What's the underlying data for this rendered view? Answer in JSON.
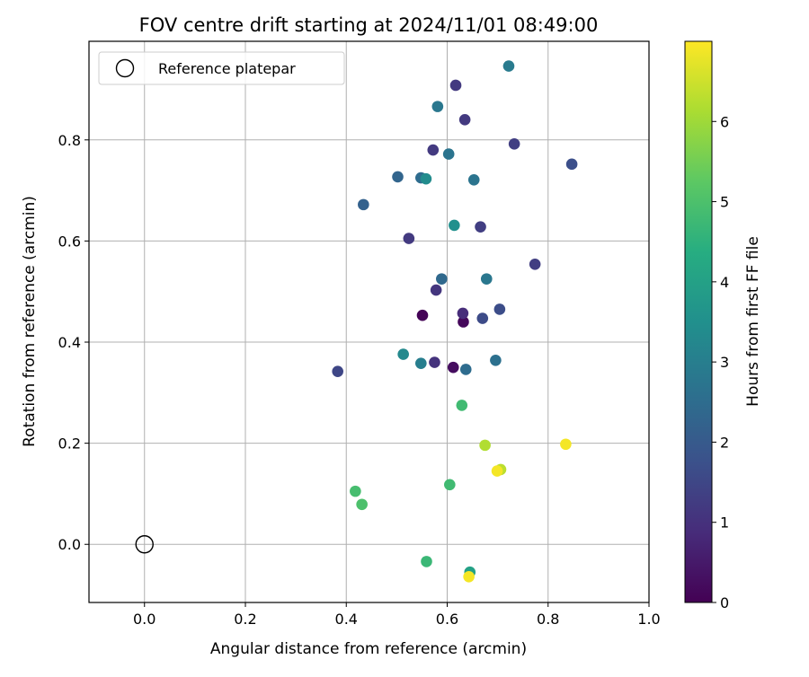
{
  "chart_data": {
    "type": "scatter",
    "title": "FOV centre drift starting at 2024/11/01 08:49:00",
    "xlabel": "Angular distance from reference (arcmin)",
    "ylabel": "Rotation from reference (arcmin)",
    "xlim": [
      -0.11,
      1.0
    ],
    "ylim": [
      -0.115,
      0.995
    ],
    "xticks": [
      0.0,
      0.2,
      0.4,
      0.6,
      0.8,
      1.0
    ],
    "xtick_labels": [
      "0.0",
      "0.2",
      "0.4",
      "0.6",
      "0.8",
      "1.0"
    ],
    "yticks": [
      0.0,
      0.2,
      0.4,
      0.6,
      0.8
    ],
    "ytick_labels": [
      "0.0",
      "0.2",
      "0.4",
      "0.6",
      "0.8"
    ],
    "grid": true,
    "colormap": "viridis",
    "colorbar": {
      "label": "Hours from first FF file",
      "range": [
        0,
        7
      ],
      "ticks": [
        0,
        1,
        2,
        3,
        4,
        5,
        6
      ],
      "tick_labels": [
        "0",
        "1",
        "2",
        "3",
        "4",
        "5",
        "6"
      ]
    },
    "legend": {
      "position": "top-left",
      "entries": [
        {
          "label": "Reference platepar",
          "marker": "open-circle"
        }
      ]
    },
    "reference_point": {
      "x": 0.0,
      "y": 0.0
    },
    "points": [
      {
        "x": 0.551,
        "y": 0.453,
        "c": 0.05
      },
      {
        "x": 0.632,
        "y": 0.44,
        "c": 0.15
      },
      {
        "x": 0.612,
        "y": 0.35,
        "c": 0.25
      },
      {
        "x": 0.631,
        "y": 0.457,
        "c": 0.9
      },
      {
        "x": 0.575,
        "y": 0.36,
        "c": 1.05
      },
      {
        "x": 0.578,
        "y": 0.503,
        "c": 1.1
      },
      {
        "x": 0.524,
        "y": 0.605,
        "c": 1.2
      },
      {
        "x": 0.617,
        "y": 0.908,
        "c": 1.2
      },
      {
        "x": 0.635,
        "y": 0.84,
        "c": 1.2
      },
      {
        "x": 0.572,
        "y": 0.78,
        "c": 1.2
      },
      {
        "x": 0.733,
        "y": 0.792,
        "c": 1.3
      },
      {
        "x": 0.666,
        "y": 0.628,
        "c": 1.3
      },
      {
        "x": 0.774,
        "y": 0.554,
        "c": 1.3
      },
      {
        "x": 0.383,
        "y": 0.342,
        "c": 1.5
      },
      {
        "x": 0.67,
        "y": 0.447,
        "c": 1.6
      },
      {
        "x": 0.704,
        "y": 0.465,
        "c": 1.65
      },
      {
        "x": 0.847,
        "y": 0.752,
        "c": 1.7
      },
      {
        "x": 0.434,
        "y": 0.672,
        "c": 2.2
      },
      {
        "x": 0.502,
        "y": 0.727,
        "c": 2.3
      },
      {
        "x": 0.548,
        "y": 0.725,
        "c": 2.5
      },
      {
        "x": 0.589,
        "y": 0.525,
        "c": 2.4
      },
      {
        "x": 0.637,
        "y": 0.346,
        "c": 2.5
      },
      {
        "x": 0.696,
        "y": 0.364,
        "c": 2.6
      },
      {
        "x": 0.653,
        "y": 0.721,
        "c": 2.7
      },
      {
        "x": 0.603,
        "y": 0.772,
        "c": 2.7
      },
      {
        "x": 0.678,
        "y": 0.525,
        "c": 2.8
      },
      {
        "x": 0.581,
        "y": 0.866,
        "c": 2.8
      },
      {
        "x": 0.722,
        "y": 0.946,
        "c": 2.9
      },
      {
        "x": 0.548,
        "y": 0.358,
        "c": 3.0
      },
      {
        "x": 0.513,
        "y": 0.376,
        "c": 3.3
      },
      {
        "x": 0.558,
        "y": 0.723,
        "c": 3.4
      },
      {
        "x": 0.614,
        "y": 0.631,
        "c": 3.5
      },
      {
        "x": 0.645,
        "y": -0.055,
        "c": 4.0
      },
      {
        "x": 0.559,
        "y": -0.034,
        "c": 4.7
      },
      {
        "x": 0.605,
        "y": 0.118,
        "c": 4.8
      },
      {
        "x": 0.629,
        "y": 0.275,
        "c": 4.8
      },
      {
        "x": 0.418,
        "y": 0.105,
        "c": 4.9
      },
      {
        "x": 0.431,
        "y": 0.079,
        "c": 5.0
      },
      {
        "x": 0.675,
        "y": 0.196,
        "c": 6.2
      },
      {
        "x": 0.706,
        "y": 0.148,
        "c": 6.3
      },
      {
        "x": 0.699,
        "y": 0.145,
        "c": 6.9
      },
      {
        "x": 0.835,
        "y": 0.198,
        "c": 6.9
      },
      {
        "x": 0.643,
        "y": -0.064,
        "c": 6.9
      }
    ]
  }
}
